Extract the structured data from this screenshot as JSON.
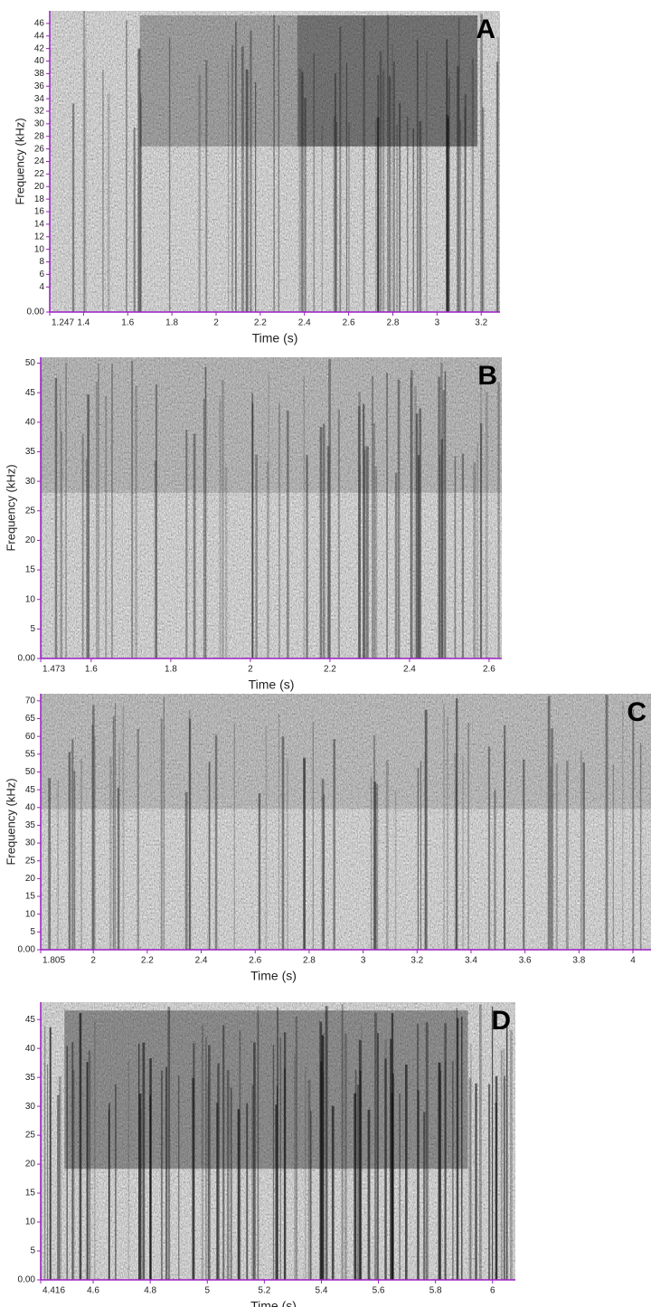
{
  "chart_data": [
    {
      "type": "spectrogram",
      "title": "A",
      "xlabel": "Time (s)",
      "ylabel": "Frequency (kHz)",
      "xlim": [
        1.247,
        3.285
      ],
      "ylim": [
        0,
        48
      ],
      "xticks": [
        {
          "value": 1.247,
          "label": "1.247"
        },
        1.4,
        1.6,
        1.8,
        2,
        2.2,
        2.4,
        2.6,
        2.8,
        3,
        3.2
      ],
      "yticks": [
        {
          "value": 0,
          "label": "0.00"
        },
        4,
        6,
        8,
        10,
        12,
        14,
        16,
        18,
        20,
        22,
        24,
        26,
        28,
        30,
        32,
        34,
        36,
        38,
        40,
        42,
        44,
        46
      ]
    },
    {
      "type": "spectrogram",
      "title": "B",
      "xlabel": "Time (s)",
      "ylabel": "Frequency (kHz)",
      "xlim": [
        1.473,
        2.632
      ],
      "ylim": [
        0,
        51
      ],
      "xticks": [
        {
          "value": 1.473,
          "label": "1.473"
        },
        1.6,
        1.8,
        2,
        2.2,
        2.4,
        2.6
      ],
      "yticks": [
        {
          "value": 0,
          "label": "0.00"
        },
        5,
        10,
        15,
        20,
        25,
        30,
        35,
        40,
        45,
        50
      ]
    },
    {
      "type": "spectrogram",
      "title": "C",
      "xlabel": "Time (s)",
      "ylabel": "Frequency (kHz)",
      "xlim": [
        1.805,
        4.067
      ],
      "ylim": [
        0,
        72
      ],
      "xticks": [
        {
          "value": 1.805,
          "label": "1.805"
        },
        2,
        2.2,
        2.4,
        2.6,
        2.8,
        3,
        3.2,
        3.4,
        3.6,
        3.8,
        4
      ],
      "yticks": [
        {
          "value": 0,
          "label": "0.00"
        },
        5,
        10,
        15,
        20,
        25,
        30,
        35,
        40,
        45,
        50,
        55,
        60,
        65,
        70
      ]
    },
    {
      "type": "spectrogram",
      "title": "D",
      "xlabel": "Time (s)",
      "xlim": [
        4.416,
        6.08
      ],
      "ylim": [
        0,
        48
      ],
      "xticks": [
        {
          "value": 4.416,
          "label": "4.416"
        },
        4.6,
        4.8,
        5,
        5.2,
        5.4,
        5.6,
        5.8,
        6
      ],
      "yticks": [
        {
          "value": 0,
          "label": "0.00"
        },
        5,
        10,
        15,
        20,
        25,
        30,
        35,
        40,
        45
      ]
    }
  ]
}
